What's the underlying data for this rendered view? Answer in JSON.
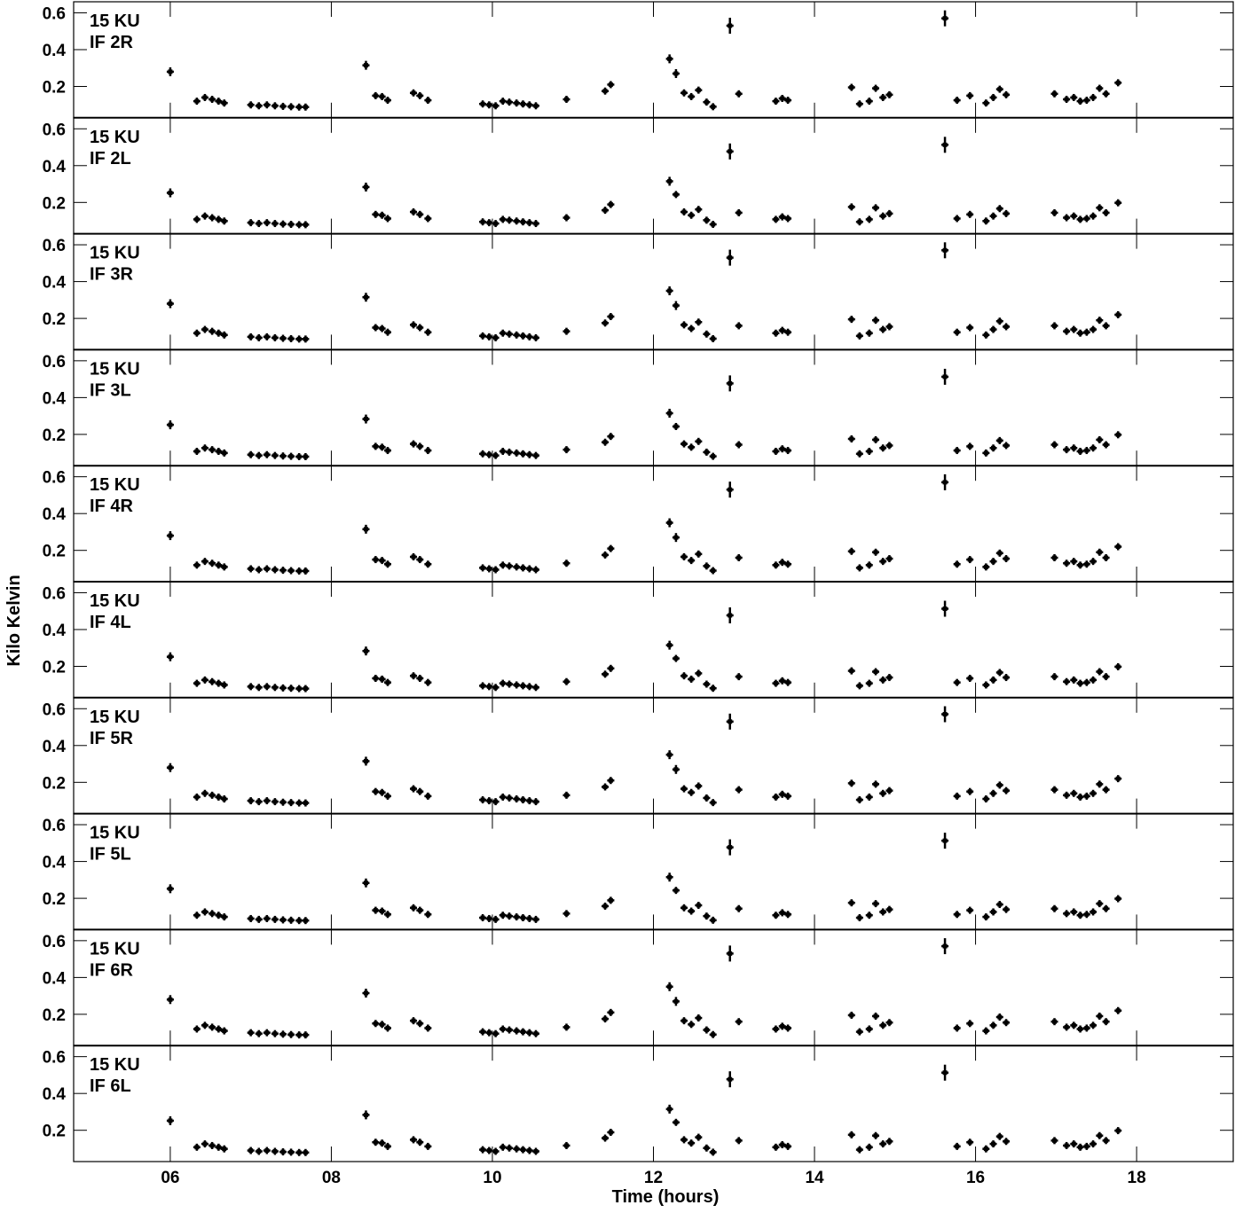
{
  "chart_data": {
    "type": "scatter",
    "xlabel": "Time (hours)",
    "ylabel": "Kilo Kelvin",
    "xlim": [
      4.8,
      19.2
    ],
    "x_ticks": [
      6,
      8,
      10,
      12,
      14,
      16,
      18
    ],
    "x_tick_labels": [
      "06",
      "08",
      "10",
      "12",
      "14",
      "16",
      "18"
    ],
    "y_ticks": [
      0.2,
      0.4,
      0.6
    ],
    "y_tick_labels": [
      "0.2",
      "0.4",
      "0.6"
    ],
    "grid": false,
    "marker": "cross with vertical error bar",
    "marker_color": "#000000",
    "panels": [
      {
        "label_line1": "15 KU",
        "label_line2": "IF 2R",
        "ylim": [
          0.03,
          0.66
        ],
        "scale": 1.0
      },
      {
        "label_line1": "15 KU",
        "label_line2": "IF 2L",
        "ylim": [
          0.03,
          0.66
        ],
        "scale": 0.9
      },
      {
        "label_line1": "15 KU",
        "label_line2": "IF 3R",
        "ylim": [
          0.03,
          0.66
        ],
        "scale": 1.0
      },
      {
        "label_line1": "15 KU",
        "label_line2": "IF 3L",
        "ylim": [
          0.03,
          0.66
        ],
        "scale": 0.9
      },
      {
        "label_line1": "15 KU",
        "label_line2": "IF 4R",
        "ylim": [
          0.03,
          0.66
        ],
        "scale": 1.0
      },
      {
        "label_line1": "15 KU",
        "label_line2": "IF 4L",
        "ylim": [
          0.03,
          0.66
        ],
        "scale": 0.9
      },
      {
        "label_line1": "15 KU",
        "label_line2": "IF 5R",
        "ylim": [
          0.03,
          0.66
        ],
        "scale": 1.0
      },
      {
        "label_line1": "15 KU",
        "label_line2": "IF 5L",
        "ylim": [
          0.03,
          0.66
        ],
        "scale": 0.9
      },
      {
        "label_line1": "15 KU",
        "label_line2": "IF 6R",
        "ylim": [
          0.03,
          0.66
        ],
        "scale": 1.0
      },
      {
        "label_line1": "15 KU",
        "label_line2": "IF 6L",
        "ylim": [
          0.03,
          0.66
        ],
        "scale": 0.9
      }
    ],
    "base_series": {
      "x": [
        6.0,
        6.33,
        6.43,
        6.52,
        6.6,
        6.67,
        7.0,
        7.1,
        7.2,
        7.3,
        7.4,
        7.5,
        7.6,
        7.68,
        8.43,
        8.55,
        8.63,
        8.7,
        9.02,
        9.1,
        9.2,
        9.88,
        9.96,
        10.04,
        10.13,
        10.21,
        10.3,
        10.38,
        10.46,
        10.54,
        10.92,
        11.4,
        11.47,
        12.2,
        12.28,
        12.38,
        12.47,
        12.56,
        12.66,
        12.74,
        12.95,
        13.06,
        13.52,
        13.6,
        13.67,
        14.46,
        14.56,
        14.68,
        14.76,
        14.85,
        14.93,
        15.62,
        15.77,
        15.93,
        16.13,
        16.22,
        16.3,
        16.38,
        16.98,
        17.13,
        17.22,
        17.3,
        17.38,
        17.46,
        17.54,
        17.62,
        17.77
      ],
      "y": [
        0.28,
        0.12,
        0.14,
        0.13,
        0.12,
        0.11,
        0.1,
        0.095,
        0.1,
        0.095,
        0.092,
        0.09,
        0.088,
        0.088,
        0.315,
        0.15,
        0.145,
        0.125,
        0.165,
        0.15,
        0.125,
        0.105,
        0.1,
        0.095,
        0.12,
        0.115,
        0.11,
        0.105,
        0.1,
        0.095,
        0.13,
        0.175,
        0.21,
        0.35,
        0.27,
        0.165,
        0.145,
        0.18,
        0.115,
        0.09,
        0.53,
        0.16,
        0.12,
        0.135,
        0.125,
        0.195,
        0.105,
        0.12,
        0.19,
        0.14,
        0.155,
        0.57,
        0.125,
        0.15,
        0.11,
        0.14,
        0.185,
        0.155,
        0.16,
        0.13,
        0.14,
        0.12,
        0.125,
        0.14,
        0.19,
        0.16,
        0.22
      ]
    }
  }
}
